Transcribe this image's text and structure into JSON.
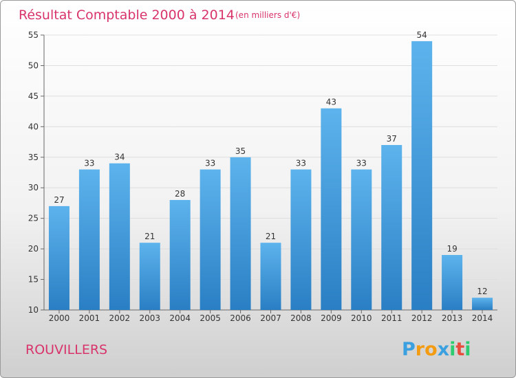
{
  "chart_data": {
    "type": "bar",
    "title": "Résultat Comptable 2000 à 2014",
    "subtitle": "(en milliers d'€)",
    "categories": [
      "2000",
      "2001",
      "2002",
      "2003",
      "2004",
      "2005",
      "2006",
      "2007",
      "2008",
      "2009",
      "2010",
      "2011",
      "2012",
      "2013",
      "2014"
    ],
    "values": [
      27,
      33,
      34,
      21,
      28,
      33,
      35,
      21,
      33,
      43,
      33,
      37,
      54,
      19,
      12
    ],
    "ylim": [
      10,
      55
    ],
    "yticks": [
      10,
      15,
      20,
      25,
      30,
      35,
      40,
      45,
      50,
      55
    ],
    "xlabel": "",
    "ylabel": "",
    "grid": true,
    "bar_color_top": "#5db3ec",
    "bar_color_bottom": "#2a7fc4"
  },
  "footer": {
    "town": "ROUVILLERS",
    "logo": {
      "letters": [
        "P",
        "r",
        "o",
        "x",
        "i",
        "t",
        "i"
      ],
      "colors": [
        "#3aa0e0",
        "#f39c12",
        "#f39c12",
        "#3aa0e0",
        "#2ecc71",
        "#e74c3c",
        "#2ecc71"
      ]
    }
  }
}
